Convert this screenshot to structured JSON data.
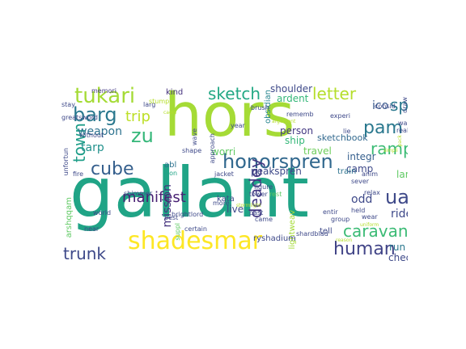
{
  "words": [
    {
      "text": "gallant",
      "color": "#20a486"
    },
    {
      "text": "hors",
      "color": "#a5db36"
    },
    {
      "text": "shadesmar",
      "color": "#fde725"
    },
    {
      "text": "honorspren",
      "color": "#31688e"
    },
    {
      "text": "tukari",
      "color": "#a5db36"
    },
    {
      "text": "pam",
      "color": "#2a788e"
    },
    {
      "text": "caravan",
      "color": "#3bbb75"
    },
    {
      "text": "human",
      "color": "#414487"
    },
    {
      "text": "barg",
      "color": "#2a788e"
    },
    {
      "text": "sketch",
      "color": "#22a884"
    },
    {
      "text": "letter",
      "color": "#b5de2b"
    },
    {
      "text": "cube",
      "color": "#355f8d"
    },
    {
      "text": "trip",
      "color": "#bddf26"
    },
    {
      "text": "zu",
      "color": "#35b779"
    },
    {
      "text": "spi",
      "color": "#2a788e"
    },
    {
      "text": "ramp",
      "color": "#3bbb75"
    },
    {
      "text": "ua",
      "color": "#3e4989"
    },
    {
      "text": "trunk",
      "color": "#3e4989"
    },
    {
      "text": "town",
      "color": "#1f9e89"
    },
    {
      "text": "manifest",
      "color": "#482173"
    },
    {
      "text": "deadey",
      "color": "#443983"
    },
    {
      "text": "weapon",
      "color": "#2c728e"
    },
    {
      "text": "tarp",
      "color": "#21918c"
    },
    {
      "text": "mission",
      "color": "#46337e"
    },
    {
      "text": "ico",
      "color": "#38588c"
    },
    {
      "text": "shoulder",
      "color": "#3e4989"
    },
    {
      "text": "ardent",
      "color": "#35b779"
    },
    {
      "text": "person",
      "color": "#443983"
    },
    {
      "text": "travel",
      "color": "#6ccd5a"
    },
    {
      "text": "ship",
      "color": "#35b779"
    },
    {
      "text": "sketchbook",
      "color": "#31688e"
    },
    {
      "text": "integr",
      "color": "#355f8d"
    },
    {
      "text": "camp",
      "color": "#3e4989"
    },
    {
      "text": "land",
      "color": "#5ec962"
    },
    {
      "text": "train",
      "color": "#2c728e"
    },
    {
      "text": "peakspren",
      "color": "#3e4989"
    },
    {
      "text": "worri",
      "color": "#5ec962"
    },
    {
      "text": "kind",
      "color": "#46337e"
    },
    {
      "text": "abl",
      "color": "#2c728e"
    },
    {
      "text": "alon",
      "color": "#20a486"
    },
    {
      "text": "odd",
      "color": "#3e4989"
    },
    {
      "text": "ride",
      "color": "#3e4989"
    },
    {
      "text": "live",
      "color": "#3e4989"
    },
    {
      "text": "kata",
      "color": "#3e4989"
    },
    {
      "text": "obsidian",
      "color": "#25848e"
    },
    {
      "text": "lightweav",
      "color": "#a5db36"
    },
    {
      "text": "check",
      "color": "#3e4989"
    },
    {
      "text": "run",
      "color": "#2a788e"
    },
    {
      "text": "ryshadium",
      "color": "#3e4989"
    },
    {
      "text": "shardblad",
      "color": "#3e4989"
    },
    {
      "text": "tell",
      "color": "#3e4989"
    },
    {
      "text": "arshqqam",
      "color": "#5ec962"
    },
    {
      "text": "memori",
      "color": "#443983"
    },
    {
      "text": "stay",
      "color": "#3e4989"
    },
    {
      "text": "greatsword",
      "color": "#3e4989"
    },
    {
      "text": "unfortun",
      "color": "#3e4989"
    },
    {
      "text": "larg",
      "color": "#3e4989"
    },
    {
      "text": "stump",
      "color": "#b5de2b"
    },
    {
      "text": "shape",
      "color": "#3e4989"
    },
    {
      "text": "approach",
      "color": "#3e4989"
    },
    {
      "text": "wave",
      "color": "#3e4989"
    },
    {
      "text": "caoin",
      "color": "#b5de2b"
    },
    {
      "text": "brush",
      "color": "#3e4989"
    },
    {
      "text": "year",
      "color": "#3e4989"
    },
    {
      "text": "jacket",
      "color": "#3e4989"
    },
    {
      "text": "figure",
      "color": "#3e4989"
    },
    {
      "text": "tower",
      "color": "#3e4989"
    },
    {
      "text": "rest",
      "color": "#5ec962"
    },
    {
      "text": "past",
      "color": "#3e4989"
    },
    {
      "text": "came",
      "color": "#3e4989"
    },
    {
      "text": "brightlord",
      "color": "#3e4989"
    },
    {
      "text": "more",
      "color": "#3e4989"
    },
    {
      "text": "best",
      "color": "#3e4989"
    },
    {
      "text": "world",
      "color": "#3e4989"
    },
    {
      "text": "shimmer",
      "color": "#3e4989"
    },
    {
      "text": "near",
      "color": "#3e4989"
    },
    {
      "text": "fire",
      "color": "#3e4989"
    },
    {
      "text": "without",
      "color": "#3e4989"
    },
    {
      "text": "certain",
      "color": "#3e4989"
    },
    {
      "text": "suppl",
      "color": "#5ec962"
    },
    {
      "text": "stormlight",
      "color": "#b5de2b"
    },
    {
      "text": "rememb",
      "color": "#3e4989"
    },
    {
      "text": "argument",
      "color": "#b5de2b"
    },
    {
      "text": "experi",
      "color": "#3e4989"
    },
    {
      "text": "lie",
      "color": "#3e4989"
    },
    {
      "text": "consid",
      "color": "#3e4989"
    },
    {
      "text": "draw",
      "color": "#3e4989"
    },
    {
      "text": "real",
      "color": "#3e4989"
    },
    {
      "text": "wait",
      "color": "#3e4989"
    },
    {
      "text": "pack",
      "color": "#b5de2b"
    },
    {
      "text": "simpli",
      "color": "#b5de2b"
    },
    {
      "text": "sever",
      "color": "#3e4989"
    },
    {
      "text": "anim",
      "color": "#3e4989"
    },
    {
      "text": "relax",
      "color": "#3e4989"
    },
    {
      "text": "held",
      "color": "#3e4989"
    },
    {
      "text": "entir",
      "color": "#3e4989"
    },
    {
      "text": "group",
      "color": "#3e4989"
    },
    {
      "text": "wear",
      "color": "#3e4989"
    },
    {
      "text": "uniform",
      "color": "#b5de2b"
    },
    {
      "text": "reason",
      "color": "#b5de2b"
    }
  ]
}
